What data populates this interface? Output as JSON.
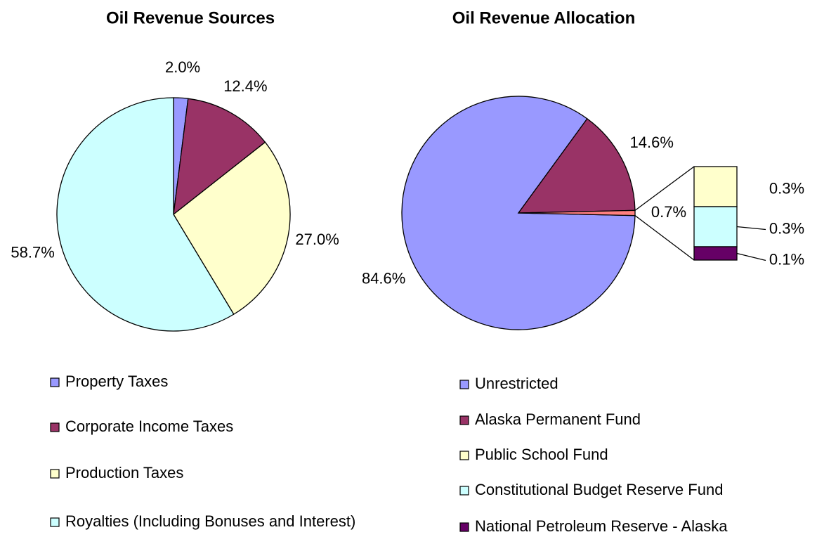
{
  "chart_data": [
    {
      "type": "pie",
      "title": "Oil Revenue Sources",
      "categories": [
        "Property Taxes",
        "Corporate Income Taxes",
        "Production Taxes",
        "Royalties (Including Bonuses and Interest)"
      ],
      "values": [
        2.0,
        12.4,
        27.0,
        58.7
      ],
      "value_labels": [
        "2.0%",
        "12.4%",
        "27.0%",
        "58.7%"
      ],
      "colors": [
        "#9999ff",
        "#993366",
        "#ffffcc",
        "#ccffff"
      ]
    },
    {
      "type": "pie",
      "title": "Oil Revenue Allocation",
      "categories": [
        "Unrestricted",
        "Alaska Permanent Fund",
        "Public School Fund",
        "Constitutional Budget Reserve Fund",
        "National Petroleum Reserve - Alaska"
      ],
      "values": [
        84.6,
        14.6,
        0.3,
        0.3,
        0.1
      ],
      "value_labels": [
        "84.6%",
        "14.6%",
        "0.3%",
        "0.3%",
        "0.1%"
      ],
      "colors": [
        "#9999ff",
        "#993366",
        "#ffffcc",
        "#ccffff",
        "#660066"
      ],
      "split": {
        "count": 3,
        "value": 0.7,
        "label": "0.7%",
        "color": "#ff8080"
      }
    }
  ]
}
